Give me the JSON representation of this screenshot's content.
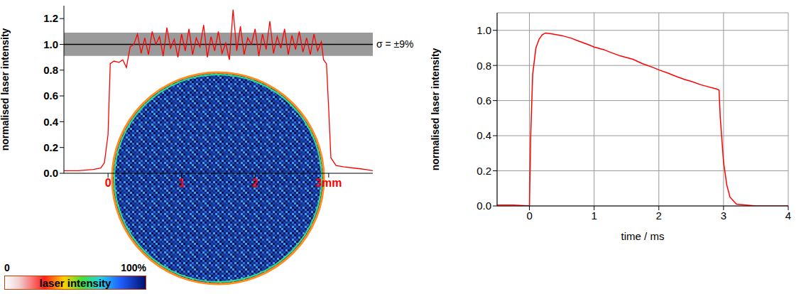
{
  "chart_data": [
    {
      "type": "line",
      "x": [
        -0.6,
        -0.4,
        -0.2,
        -0.1,
        -0.05,
        0.0,
        0.03,
        0.08,
        0.15,
        0.2,
        0.25,
        0.3,
        0.35,
        0.4,
        0.45,
        0.5,
        0.55,
        0.6,
        0.65,
        0.7,
        0.75,
        0.8,
        0.85,
        0.9,
        0.95,
        1.0,
        1.05,
        1.1,
        1.15,
        1.2,
        1.25,
        1.3,
        1.35,
        1.4,
        1.45,
        1.5,
        1.55,
        1.6,
        1.65,
        1.7,
        1.75,
        1.8,
        1.85,
        1.9,
        1.95,
        2.0,
        2.05,
        2.1,
        2.15,
        2.2,
        2.25,
        2.3,
        2.35,
        2.4,
        2.45,
        2.5,
        2.55,
        2.6,
        2.65,
        2.7,
        2.75,
        2.8,
        2.85,
        2.9,
        2.93,
        2.97,
        3.0,
        3.03,
        3.1,
        3.2,
        3.35,
        3.5,
        3.6
      ],
      "values": [
        0.02,
        0.02,
        0.03,
        0.04,
        0.08,
        0.3,
        0.85,
        0.87,
        0.86,
        0.88,
        0.82,
        0.98,
        1.0,
        1.08,
        0.93,
        1.05,
        0.92,
        1.1,
        1.0,
        1.06,
        0.91,
        1.13,
        0.97,
        1.04,
        0.9,
        1.08,
        0.95,
        1.12,
        0.92,
        1.05,
        0.98,
        1.15,
        0.9,
        1.06,
        0.95,
        1.1,
        0.93,
        1.01,
        0.88,
        1.27,
        0.95,
        1.14,
        0.92,
        1.05,
        1.0,
        1.12,
        0.91,
        1.08,
        0.96,
        1.18,
        0.93,
        1.06,
        0.97,
        1.12,
        0.92,
        1.07,
        0.96,
        1.1,
        0.94,
        1.05,
        0.92,
        1.08,
        0.95,
        1.02,
        0.88,
        0.85,
        0.5,
        0.12,
        0.06,
        0.05,
        0.04,
        0.03,
        0.02
      ],
      "color": "#ff0000",
      "xlim": [
        -0.6,
        3.6
      ],
      "xticks": [
        0,
        1,
        2,
        {
          "value": 3,
          "label": "3mm"
        }
      ],
      "ylim": [
        0,
        1.3
      ],
      "yticks": [
        {
          "value": 0,
          "label": "0.0"
        },
        0.2,
        0.4,
        0.6,
        0.8,
        {
          "value": 1,
          "label": "1.0"
        },
        {
          "value": 1.2,
          "label": "1.2"
        }
      ],
      "y_label": "normalised laser intensity",
      "grid": false,
      "reference": {
        "value": 1.0,
        "band": [
          0.91,
          1.09
        ],
        "label": "σ = ±9%"
      },
      "colorbar": {
        "range": [
          0,
          100
        ],
        "ticks": [
          0,
          {
            "value": 100,
            "label": "100%"
          }
        ],
        "label": "laser intensity"
      }
    },
    {
      "type": "line",
      "x": [
        -0.5,
        -0.25,
        0.0,
        0.02,
        0.05,
        0.1,
        0.15,
        0.2,
        0.25,
        0.35,
        0.5,
        0.65,
        0.75,
        0.9,
        1.0,
        1.15,
        1.25,
        1.4,
        1.5,
        1.6,
        1.75,
        1.9,
        2.0,
        2.15,
        2.25,
        2.4,
        2.5,
        2.65,
        2.75,
        2.85,
        2.9,
        2.93,
        2.95,
        3.0,
        3.05,
        3.1,
        3.2,
        3.5,
        4.0
      ],
      "values": [
        0.005,
        0.005,
        0.0,
        0.4,
        0.75,
        0.9,
        0.95,
        0.975,
        0.985,
        0.98,
        0.97,
        0.955,
        0.94,
        0.92,
        0.905,
        0.89,
        0.875,
        0.855,
        0.845,
        0.835,
        0.81,
        0.79,
        0.775,
        0.755,
        0.74,
        0.72,
        0.71,
        0.69,
        0.68,
        0.67,
        0.665,
        0.66,
        0.5,
        0.25,
        0.12,
        0.05,
        0.01,
        0.0,
        0.0
      ],
      "color": "#ff0000",
      "xlim": [
        -0.5,
        4
      ],
      "xticks": [
        0,
        1,
        2,
        3,
        4
      ],
      "ylim": [
        0,
        1.1
      ],
      "yticks": [
        {
          "value": 0,
          "label": "0.0"
        },
        0.2,
        0.4,
        0.6,
        0.8,
        {
          "value": 1,
          "label": "1.0"
        }
      ],
      "x_label": "time / ms",
      "y_label": "normalised laser intensity",
      "grid": true
    }
  ]
}
